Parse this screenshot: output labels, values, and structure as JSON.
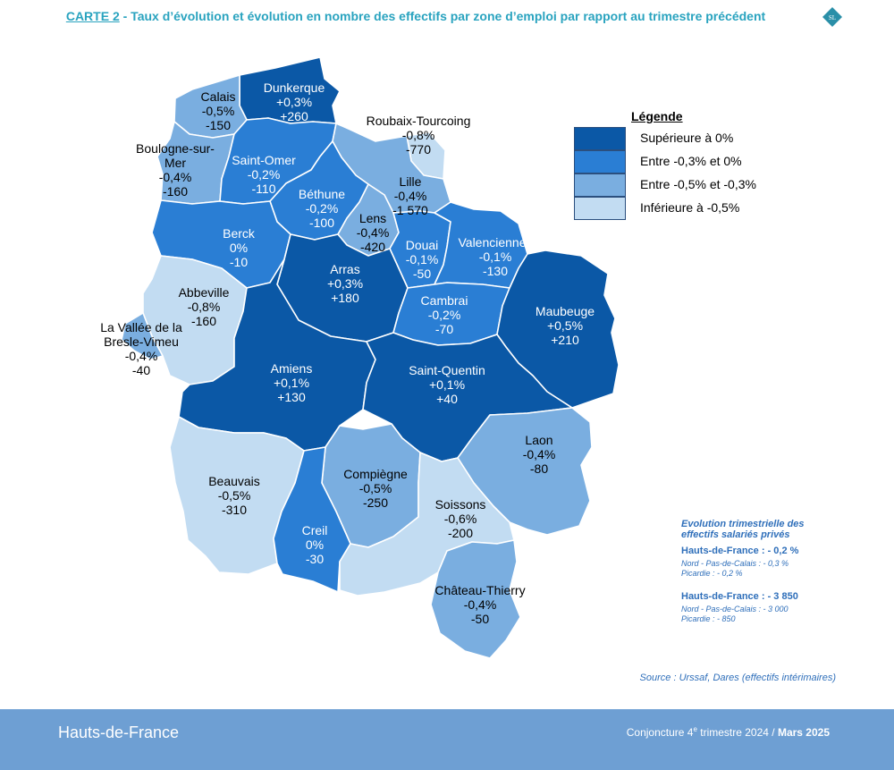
{
  "header": {
    "carte": "CARTE 2",
    "title_rest": " - Taux d’évolution et évolution en nombre des effectifs par zone d’emploi par rapport au trimestre précédent",
    "badge": "SL"
  },
  "colors": {
    "superieure": "#0b58a6",
    "entre_03_0": "#2a7ed4",
    "entre_05_03": "#7aaee0",
    "inferieure": "#c2dcf2",
    "title": "#29a3bf",
    "footer_bg": "#6e9fd3"
  },
  "legend": {
    "title": "Légende",
    "items": [
      {
        "label": "Supérieure à 0%",
        "color": "#0b58a6"
      },
      {
        "label": "Entre -0,3% et 0%",
        "color": "#2a7ed4"
      },
      {
        "label": "Entre -0,5% et -0,3%",
        "color": "#7aaee0"
      },
      {
        "label": "Inférieure à -0,5%",
        "color": "#c2dcf2"
      }
    ]
  },
  "zones": [
    {
      "name": "Dunkerque",
      "rate": "+0,3%",
      "count": "+260",
      "class": "superieure"
    },
    {
      "name": "Calais",
      "rate": "-0,5%",
      "count": "-150",
      "class": "entre_05_03"
    },
    {
      "name": "Boulogne-sur-Mer",
      "name_line1": "Boulogne-sur-",
      "name_line2": "Mer",
      "rate": "-0,4%",
      "count": "-160",
      "class": "entre_05_03"
    },
    {
      "name": "Saint-Omer",
      "rate": "-0,2%",
      "count": "-110",
      "class": "entre_03_0"
    },
    {
      "name": "Roubaix-Tourcoing",
      "rate": "-0,8%",
      "count": "-770",
      "class": "inferieure"
    },
    {
      "name": "Lille",
      "rate": "-0,4%",
      "count": "-1 570",
      "class": "entre_05_03"
    },
    {
      "name": "Béthune",
      "rate": "-0,2%",
      "count": "-100",
      "class": "entre_03_0"
    },
    {
      "name": "Lens",
      "rate": "-0,4%",
      "count": "-420",
      "class": "entre_05_03"
    },
    {
      "name": "Berck",
      "rate": "0%",
      "count": "-10",
      "class": "entre_03_0"
    },
    {
      "name": "Douai",
      "rate": "-0,1%",
      "count": "-50",
      "class": "entre_03_0"
    },
    {
      "name": "Valenciennes",
      "rate": "-0,1%",
      "count": "-130",
      "class": "entre_03_0"
    },
    {
      "name": "Arras",
      "rate": "+0,3%",
      "count": "+180",
      "class": "superieure"
    },
    {
      "name": "Abbeville",
      "rate": "-0,8%",
      "count": "-160",
      "class": "inferieure"
    },
    {
      "name": "La Vallée de la Bresle-Vimeu",
      "name_line1": "La Vallée de la",
      "name_line2": "Bresle-Vimeu",
      "rate": "-0,4%",
      "count": "-40",
      "class": "entre_05_03"
    },
    {
      "name": "Cambrai",
      "rate": "-0,2%",
      "count": "-70",
      "class": "entre_03_0"
    },
    {
      "name": "Maubeuge",
      "rate": "+0,5%",
      "count": "+210",
      "class": "superieure"
    },
    {
      "name": "Amiens",
      "rate": "+0,1%",
      "count": "+130",
      "class": "superieure"
    },
    {
      "name": "Saint-Quentin",
      "rate": "+0,1%",
      "count": "+40",
      "class": "superieure"
    },
    {
      "name": "Laon",
      "rate": "-0,4%",
      "count": "-80",
      "class": "entre_05_03"
    },
    {
      "name": "Beauvais",
      "rate": "-0,5%",
      "count": "-310",
      "class": "inferieure"
    },
    {
      "name": "Compiègne",
      "rate": "-0,5%",
      "count": "-250",
      "class": "entre_05_03"
    },
    {
      "name": "Soissons",
      "rate": "-0,6%",
      "count": "-200",
      "class": "inferieure"
    },
    {
      "name": "Creil",
      "rate": "0%",
      "count": "-30",
      "class": "entre_03_0"
    },
    {
      "name": "Château-Thierry",
      "rate": "-0,4%",
      "count": "-50",
      "class": "entre_05_03"
    }
  ],
  "info": {
    "title_line1": "Evolution trimestrielle des",
    "title_line2": "effectifs salariés privés",
    "hdf_rate": "Hauts-de-France : - 0,2 %",
    "npdc_rate": "Nord - Pas-de-Calais : - 0,3 %",
    "picardie_rate": "Picardie : - 0,2 %",
    "hdf_count": "Hauts-de-France : - 3 850",
    "npdc_count": "Nord - Pas-de-Calais : - 3 000",
    "picardie_count": "Picardie : - 850"
  },
  "source": "Source : Urssaf, Dares (effectifs intérimaires)",
  "footer": {
    "region": "Hauts-de-France",
    "conjoncture_prefix": "Conjoncture 4",
    "conjoncture_sup": "e",
    "conjoncture_suffix": " trimestre 2024 / ",
    "date": "Mars 2025"
  }
}
